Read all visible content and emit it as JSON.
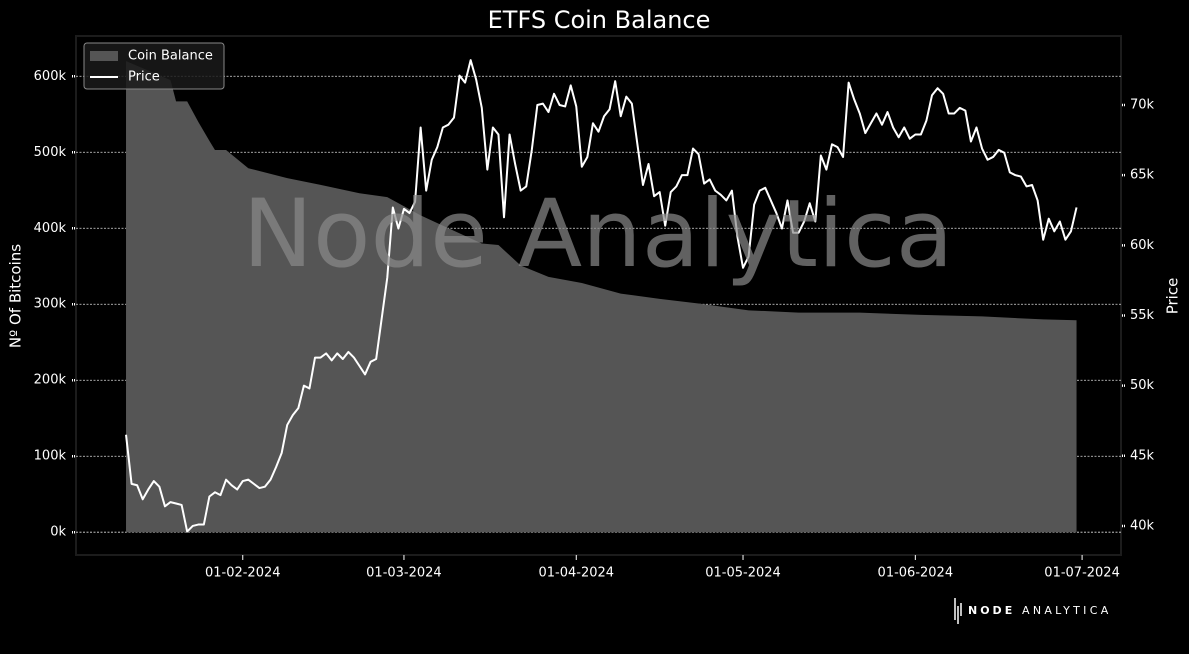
{
  "chart_data": {
    "type": "line",
    "title": "ETFS Coin Balance",
    "y_label": "Nº Of Bitcoins",
    "y2_label": "Price",
    "watermark": "Node Analytica",
    "legend": "upper left",
    "grid": true,
    "xlim": [
      "02-01-2024",
      "08-07-2024"
    ],
    "xticks": [
      "01-02-2024",
      "01-03-2024",
      "01-04-2024",
      "01-05-2024",
      "01-06-2024",
      "01-07-2024"
    ],
    "ylim": [
      -30000,
      653000
    ],
    "yticks": [
      {
        "value": 0,
        "label": "0k"
      },
      {
        "value": 100000,
        "label": "100k"
      },
      {
        "value": 200000,
        "label": "200k"
      },
      {
        "value": 300000,
        "label": "300k"
      },
      {
        "value": 400000,
        "label": "400k"
      },
      {
        "value": 500000,
        "label": "500k"
      },
      {
        "value": 600000,
        "label": "600k"
      }
    ],
    "y2lim": [
      37930,
      74920
    ],
    "y2ticks": [
      {
        "value": 40000,
        "label": "40k"
      },
      {
        "value": 45000,
        "label": "45k"
      },
      {
        "value": 50000,
        "label": "50k"
      },
      {
        "value": 55000,
        "label": "55k"
      },
      {
        "value": 60000,
        "label": "60k"
      },
      {
        "value": 65000,
        "label": "65k"
      },
      {
        "value": 70000,
        "label": "70k"
      }
    ],
    "series": [
      {
        "name": "Coin Balance",
        "type": "area",
        "color": "#555555",
        "x": [
          "11-01-2024",
          "19-01-2024",
          "20-01-2024",
          "22-01-2024",
          "24-01-2024",
          "26-01-2024",
          "27-01-2024",
          "29-01-2024",
          "02-02-2024",
          "09-02-2024",
          "15-02-2024",
          "22-02-2024",
          "27-02-2024",
          "04-03-2024",
          "09-03-2024",
          "15-03-2024",
          "18-03-2024",
          "22-03-2024",
          "27-03-2024",
          "02-04-2024",
          "09-04-2024",
          "16-04-2024",
          "23-04-2024",
          "02-05-2024",
          "11-05-2024",
          "22-05-2024",
          "02-06-2024",
          "13-06-2024",
          "24-06-2024",
          "30-06-2024"
        ],
        "values": [
          620000,
          595000,
          567000,
          567000,
          540000,
          515000,
          503000,
          503000,
          479000,
          466000,
          457000,
          446000,
          441000,
          417000,
          400000,
          380000,
          378000,
          351000,
          336000,
          328000,
          314000,
          307000,
          301000,
          292000,
          289000,
          289000,
          286000,
          284000,
          280000,
          279000
        ]
      },
      {
        "name": "Price",
        "type": "line",
        "color": "#ffffff",
        "axis": "y2",
        "x": [
          "11-01-2024",
          "12-01-2024",
          "13-01-2024",
          "14-01-2024",
          "15-01-2024",
          "16-01-2024",
          "17-01-2024",
          "18-01-2024",
          "19-01-2024",
          "20-01-2024",
          "21-01-2024",
          "22-01-2024",
          "23-01-2024",
          "24-01-2024",
          "25-01-2024",
          "26-01-2024",
          "27-01-2024",
          "28-01-2024",
          "29-01-2024",
          "30-01-2024",
          "31-01-2024",
          "01-02-2024",
          "02-02-2024",
          "03-02-2024",
          "04-02-2024",
          "05-02-2024",
          "06-02-2024",
          "07-02-2024",
          "08-02-2024",
          "09-02-2024",
          "10-02-2024",
          "11-02-2024",
          "12-02-2024",
          "13-02-2024",
          "14-02-2024",
          "15-02-2024",
          "16-02-2024",
          "17-02-2024",
          "18-02-2024",
          "19-02-2024",
          "20-02-2024",
          "21-02-2024",
          "22-02-2024",
          "23-02-2024",
          "24-02-2024",
          "25-02-2024",
          "26-02-2024",
          "27-02-2024",
          "28-02-2024",
          "29-02-2024",
          "01-03-2024",
          "02-03-2024",
          "03-03-2024",
          "04-03-2024",
          "05-03-2024",
          "06-03-2024",
          "07-03-2024",
          "08-03-2024",
          "09-03-2024",
          "10-03-2024",
          "11-03-2024",
          "12-03-2024",
          "13-03-2024",
          "14-03-2024",
          "15-03-2024",
          "16-03-2024",
          "17-03-2024",
          "18-03-2024",
          "19-03-2024",
          "20-03-2024",
          "21-03-2024",
          "22-03-2024",
          "23-03-2024",
          "24-03-2024",
          "25-03-2024",
          "26-03-2024",
          "27-03-2024",
          "28-03-2024",
          "29-03-2024",
          "30-03-2024",
          "31-03-2024",
          "01-04-2024",
          "02-04-2024",
          "03-04-2024",
          "04-04-2024",
          "05-04-2024",
          "06-04-2024",
          "07-04-2024",
          "08-04-2024",
          "09-04-2024",
          "10-04-2024",
          "11-04-2024",
          "12-04-2024",
          "13-04-2024",
          "14-04-2024",
          "15-04-2024",
          "16-04-2024",
          "17-04-2024",
          "18-04-2024",
          "19-04-2024",
          "20-04-2024",
          "21-04-2024",
          "22-04-2024",
          "23-04-2024",
          "24-04-2024",
          "25-04-2024",
          "26-04-2024",
          "27-04-2024",
          "28-04-2024",
          "29-04-2024",
          "30-04-2024",
          "01-05-2024",
          "02-05-2024",
          "03-05-2024",
          "04-05-2024",
          "05-05-2024",
          "06-05-2024",
          "07-05-2024",
          "08-05-2024",
          "09-05-2024",
          "10-05-2024",
          "11-05-2024",
          "12-05-2024",
          "13-05-2024",
          "14-05-2024",
          "15-05-2024",
          "16-05-2024",
          "17-05-2024",
          "18-05-2024",
          "19-05-2024",
          "20-05-2024",
          "21-05-2024",
          "22-05-2024",
          "23-05-2024",
          "24-05-2024",
          "25-05-2024",
          "26-05-2024",
          "27-05-2024",
          "28-05-2024",
          "29-05-2024",
          "30-05-2024",
          "31-05-2024",
          "01-06-2024",
          "02-06-2024",
          "03-06-2024",
          "04-06-2024",
          "05-06-2024",
          "06-06-2024",
          "07-06-2024",
          "08-06-2024",
          "09-06-2024",
          "10-06-2024",
          "11-06-2024",
          "12-06-2024",
          "13-06-2024",
          "14-06-2024",
          "15-06-2024",
          "16-06-2024",
          "17-06-2024",
          "18-06-2024",
          "19-06-2024",
          "20-06-2024",
          "21-06-2024",
          "22-06-2024",
          "23-06-2024",
          "24-06-2024",
          "25-06-2024",
          "26-06-2024",
          "27-06-2024",
          "28-06-2024",
          "29-06-2024",
          "30-06-2024"
        ],
        "values": [
          46500,
          43000,
          42900,
          41900,
          42600,
          43200,
          42800,
          41400,
          41700,
          41600,
          41500,
          39600,
          40000,
          40100,
          40100,
          42100,
          42400,
          42200,
          43300,
          42900,
          42600,
          43200,
          43300,
          43000,
          42700,
          42800,
          43300,
          44200,
          45200,
          47200,
          47900,
          48400,
          50000,
          49800,
          52000,
          52000,
          52300,
          51800,
          52300,
          51900,
          52400,
          52000,
          51400,
          50800,
          51700,
          51900,
          54800,
          57700,
          62700,
          61200,
          62600,
          62300,
          63100,
          68400,
          63900,
          66100,
          67000,
          68400,
          68600,
          69100,
          72100,
          71600,
          73200,
          71800,
          69800,
          65400,
          68400,
          67900,
          62000,
          67900,
          65800,
          63900,
          64200,
          66800,
          70000,
          70100,
          69500,
          70800,
          70000,
          69900,
          71400,
          69900,
          65600,
          66300,
          68700,
          68100,
          69200,
          69700,
          71700,
          69200,
          70600,
          70100,
          67200,
          64300,
          65800,
          63500,
          63800,
          61400,
          63800,
          64200,
          65000,
          65000,
          66900,
          66500,
          64400,
          64700,
          63900,
          63600,
          63200,
          63900,
          60600,
          58400,
          59200,
          62900,
          63900,
          64100,
          63200,
          62300,
          61200,
          63200,
          60900,
          60900,
          61700,
          63000,
          61700,
          66400,
          65400,
          67200,
          67000,
          66300,
          71600,
          70400,
          69400,
          68000,
          68700,
          69400,
          68600,
          69500,
          68400,
          67700,
          68400,
          67600,
          67900,
          67900,
          68900,
          70700,
          71200,
          70800,
          69400,
          69400,
          69800,
          69600,
          67400,
          68400,
          66900,
          66100,
          66300,
          66800,
          66600,
          65200,
          65000,
          64900,
          64200,
          64300,
          63200,
          60400,
          61900,
          61000,
          61700,
          60400,
          61000,
          62700
        ]
      }
    ]
  },
  "footer": {
    "brand_strong": "NODE",
    "brand": "ANALYTICA"
  }
}
